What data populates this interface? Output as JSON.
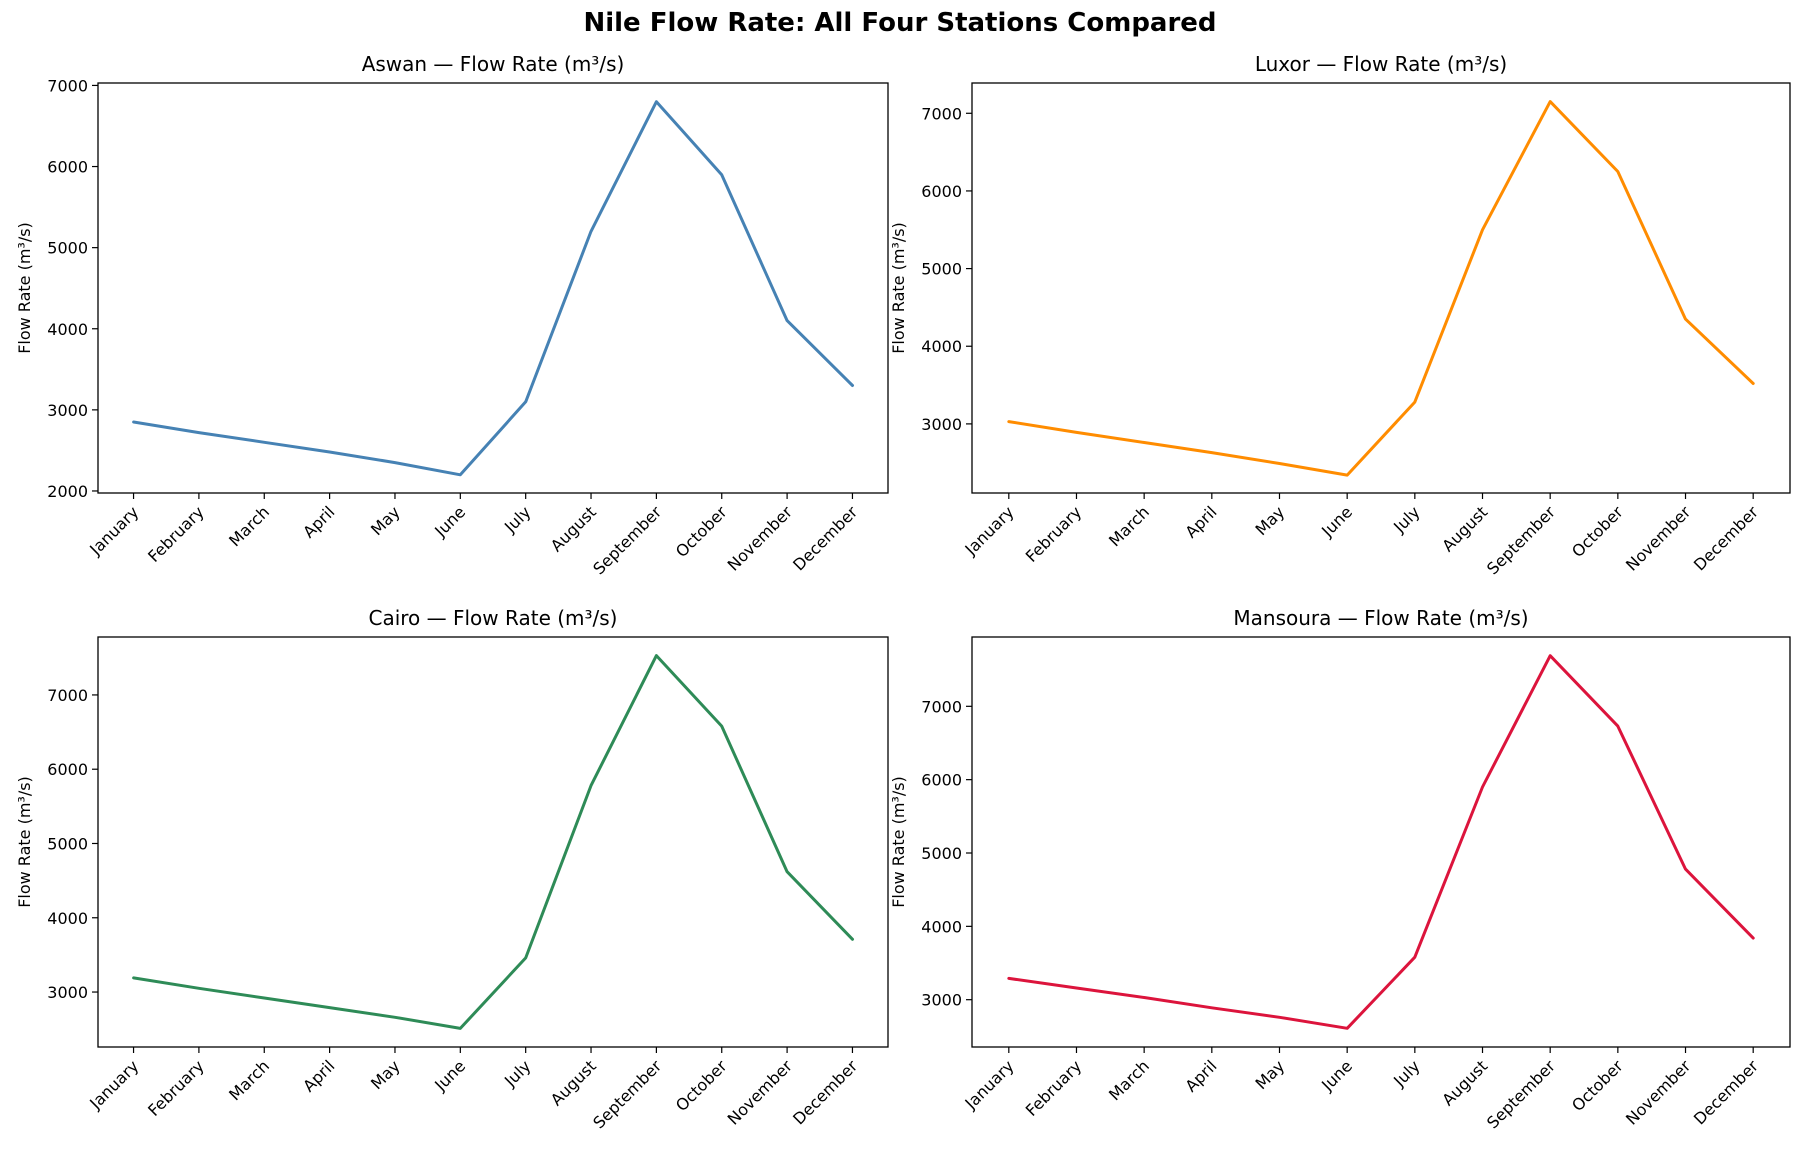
{
  "title": "Nile Flow Rate: All Four Stations Compared",
  "chart_data": [
    {
      "type": "line",
      "title": "Aswan — Flow Rate (m³/s)",
      "xlabel": "",
      "ylabel": "Flow Rate (m³/s)",
      "categories": [
        "January",
        "February",
        "March",
        "April",
        "May",
        "June",
        "July",
        "August",
        "September",
        "October",
        "November",
        "December"
      ],
      "values": [
        2850,
        2720,
        2600,
        2480,
        2350,
        2200,
        3100,
        5200,
        6800,
        5900,
        4100,
        3300
      ],
      "yticks": [
        2000,
        3000,
        4000,
        5000,
        6000,
        7000
      ],
      "ylim": [
        1975,
        7030
      ],
      "color": "#4682b4",
      "grid": false
    },
    {
      "type": "line",
      "title": "Luxor — Flow Rate (m³/s)",
      "xlabel": "",
      "ylabel": "Flow Rate (m³/s)",
      "categories": [
        "January",
        "February",
        "March",
        "April",
        "May",
        "June",
        "July",
        "August",
        "September",
        "October",
        "November",
        "December"
      ],
      "values": [
        3030,
        2890,
        2760,
        2630,
        2490,
        2340,
        3280,
        5500,
        7150,
        6250,
        4350,
        3520
      ],
      "yticks": [
        3000,
        4000,
        5000,
        6000,
        7000
      ],
      "ylim": [
        2110,
        7390
      ],
      "color": "#ff8c00",
      "grid": false
    },
    {
      "type": "line",
      "title": "Cairo — Flow Rate (m³/s)",
      "xlabel": "",
      "ylabel": "Flow Rate (m³/s)",
      "categories": [
        "January",
        "February",
        "March",
        "April",
        "May",
        "June",
        "July",
        "August",
        "September",
        "October",
        "November",
        "December"
      ],
      "values": [
        3190,
        3050,
        2920,
        2790,
        2660,
        2510,
        3460,
        5780,
        7530,
        6580,
        4620,
        3710
      ],
      "yticks": [
        3000,
        4000,
        5000,
        6000,
        7000
      ],
      "ylim": [
        2260,
        7780
      ],
      "color": "#2e8b57",
      "grid": false
    },
    {
      "type": "line",
      "title": "Mansoura — Flow Rate (m³/s)",
      "xlabel": "",
      "ylabel": "Flow Rate (m³/s)",
      "categories": [
        "January",
        "February",
        "March",
        "April",
        "May",
        "June",
        "July",
        "August",
        "September",
        "October",
        "November",
        "December"
      ],
      "values": [
        3290,
        3160,
        3030,
        2890,
        2760,
        2610,
        3580,
        5900,
        7690,
        6730,
        4780,
        3840
      ],
      "yticks": [
        3000,
        4000,
        5000,
        6000,
        7000
      ],
      "ylim": [
        2355,
        7945
      ],
      "color": "#dc143c",
      "grid": false
    }
  ]
}
